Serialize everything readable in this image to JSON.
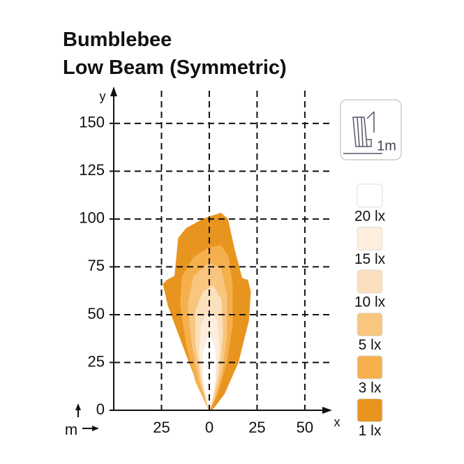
{
  "chart_data": {
    "type": "isolux",
    "title": "Bumblebee",
    "subtitle": "Low Beam (Symmetric)",
    "x_label": "x",
    "y_label": "y",
    "unit_label": "m",
    "icon_label": "1m",
    "xlim": [
      -50,
      65
    ],
    "ylim": [
      0,
      170
    ],
    "xticks": [
      {
        "value": -25,
        "label": "25"
      },
      0,
      25,
      50
    ],
    "yticks": [
      0,
      25,
      50,
      75,
      100,
      125,
      150
    ],
    "grid": true,
    "series": [
      {
        "name": "1 lx",
        "color": "#e8951f",
        "x": [
          0,
          -8.8,
          -16,
          -21.5,
          -24,
          -22,
          -18,
          -16,
          -12,
          -3,
          6,
          9.5,
          13,
          17,
          20,
          21.5,
          20.5,
          15,
          7.7,
          2
        ],
        "y": [
          0,
          21,
          40,
          55,
          66,
          68,
          70,
          90,
          95,
          100,
          103,
          100,
          84,
          69,
          68,
          62,
          47,
          25,
          8.5,
          1
        ]
      },
      {
        "name": "3 lx",
        "color": "#f5b04d",
        "x": [
          0,
          -7,
          -12,
          -15,
          -14,
          -8,
          0,
          6,
          10,
          12,
          12,
          9,
          4
        ],
        "y": [
          0,
          15,
          35,
          55,
          70,
          80,
          85,
          86,
          80,
          65,
          45,
          25,
          8
        ]
      },
      {
        "name": "5 lx",
        "color": "#f8c67f",
        "x": [
          0,
          -5,
          -9,
          -11,
          -8,
          0,
          6,
          9,
          9,
          7,
          3
        ],
        "y": [
          0,
          15,
          35,
          55,
          70,
          77,
          74,
          60,
          40,
          22,
          7
        ]
      },
      {
        "name": "10 lx",
        "color": "#fbe0bd",
        "x": [
          0,
          -4,
          -7,
          -7,
          -3,
          2,
          6,
          7,
          5,
          2
        ],
        "y": [
          0,
          15,
          35,
          52,
          62,
          65,
          58,
          40,
          20,
          6
        ]
      },
      {
        "name": "15 lx",
        "color": "#fdeedd",
        "x": [
          0,
          -3,
          -5,
          -4,
          0,
          4,
          5,
          3,
          1
        ],
        "y": [
          0,
          12,
          30,
          45,
          52,
          47,
          32,
          15,
          4
        ]
      },
      {
        "name": "20 lx",
        "color": "#ffffff",
        "x": [
          0,
          -3,
          -3,
          0,
          3,
          3,
          1
        ],
        "y": [
          2,
          15,
          30,
          40,
          32,
          15,
          4
        ]
      }
    ]
  }
}
